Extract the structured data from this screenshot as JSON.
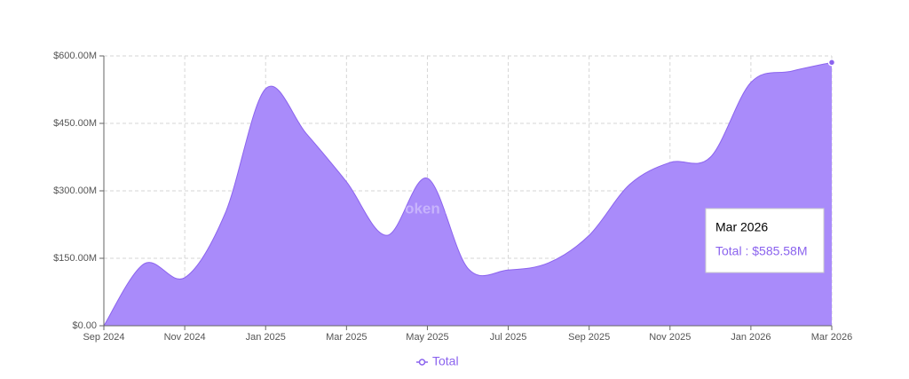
{
  "chart_data": {
    "type": "area",
    "watermark": "Token Relations",
    "categories": [
      "Sep 2024",
      null,
      "Nov 2024",
      null,
      "Jan 2025",
      null,
      "Mar 2025",
      null,
      "May 2025",
      null,
      "Jul 2025",
      null,
      "Sep 2025",
      null,
      "Nov 2025",
      null,
      "Jan 2026",
      null,
      "Mar 2026"
    ],
    "series": [
      {
        "name": "Total",
        "color": "#a98bfa",
        "line_color": "#8b63ee",
        "values": [
          0,
          138,
          107,
          250,
          527,
          428,
          320,
          201,
          328,
          128,
          124,
          140,
          201,
          314,
          363,
          375,
          541,
          566,
          585.58
        ]
      }
    ],
    "ylim": [
      0,
      600
    ],
    "yticks": [
      {
        "value": 0,
        "label": "$0.00"
      },
      {
        "value": 150,
        "label": "$150.00M"
      },
      {
        "value": 300,
        "label": "$300.00M"
      },
      {
        "value": 450,
        "label": "$450.00M"
      },
      {
        "value": 600,
        "label": "$600.00M"
      }
    ],
    "grid": true,
    "legend": "bottom",
    "tooltip": {
      "index": 18,
      "text": "Total : $585.58M"
    }
  }
}
